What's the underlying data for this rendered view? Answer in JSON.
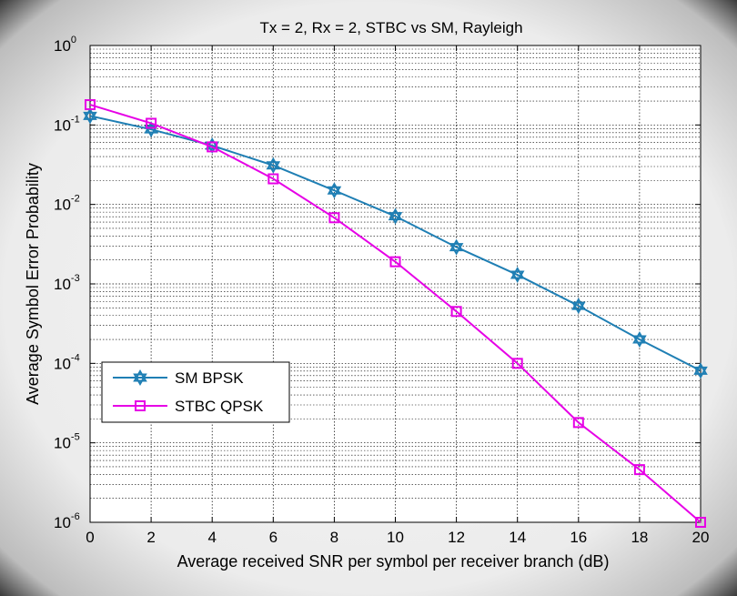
{
  "chart_data": {
    "type": "line",
    "title": "Tx = 2, Rx = 2, STBC vs SM, Rayleigh",
    "xlabel": "Average received SNR per symbol per receiver branch (dB)",
    "ylabel": "Average Symbol Error Probability",
    "xlim": [
      0,
      20
    ],
    "ylim": [
      1e-06,
      1
    ],
    "yscale": "log",
    "grid": true,
    "legend_position": "lower-left",
    "x_ticks": [
      "0",
      "2",
      "4",
      "6",
      "8",
      "10",
      "12",
      "14",
      "16",
      "18",
      "20"
    ],
    "y_ticks": [
      {
        "base": "10",
        "exp": "0"
      },
      {
        "base": "10",
        "exp": "-1"
      },
      {
        "base": "10",
        "exp": "-2"
      },
      {
        "base": "10",
        "exp": "-3"
      },
      {
        "base": "10",
        "exp": "-4"
      },
      {
        "base": "10",
        "exp": "-5"
      },
      {
        "base": "10",
        "exp": "-6"
      }
    ],
    "x": [
      0,
      2,
      4,
      6,
      8,
      10,
      12,
      14,
      16,
      18,
      20
    ],
    "series": [
      {
        "name": "SM BPSK",
        "color": "#1f7fb4",
        "marker": "hexagram",
        "values": [
          0.13,
          0.088,
          0.055,
          0.031,
          0.015,
          0.0071,
          0.0029,
          0.0013,
          0.00053,
          0.0002,
          8.1e-05
        ]
      },
      {
        "name": "STBC QPSK",
        "color": "#e600e6",
        "marker": "square",
        "values": [
          0.18,
          0.105,
          0.053,
          0.021,
          0.0068,
          0.0019,
          0.00045,
          0.0001,
          1.8e-05,
          4.6e-06,
          1e-06
        ]
      }
    ]
  }
}
